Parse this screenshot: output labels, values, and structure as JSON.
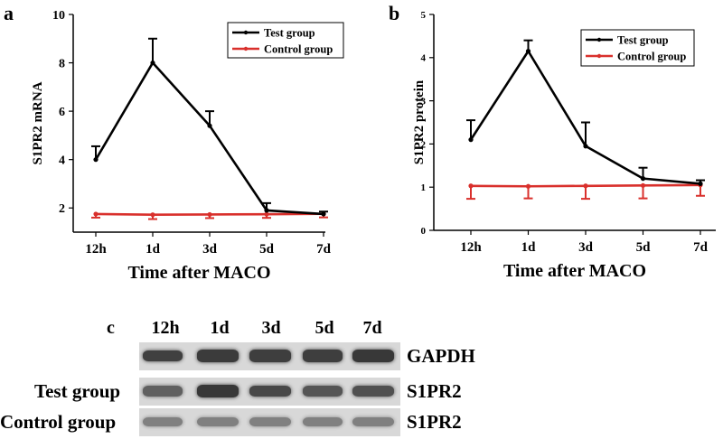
{
  "panels": [
    {
      "letter": "a"
    },
    {
      "letter": "b"
    }
  ],
  "chart_data": [
    {
      "type": "line",
      "categories": [
        "12h",
        "1d",
        "3d",
        "5d",
        "7d"
      ],
      "xlabel": "Time after MACO",
      "ylabel": "S1PR2 mRNA",
      "ylim": [
        1,
        10
      ],
      "yticks": [
        2,
        4,
        6,
        8,
        10
      ],
      "legend_position": "top-right",
      "series": [
        {
          "name": "Test group",
          "color": "#000000",
          "values": [
            4.0,
            8.0,
            5.4,
            1.9,
            1.75
          ],
          "error": [
            0.55,
            1.0,
            0.6,
            0.3,
            0.1
          ]
        },
        {
          "name": "Control group",
          "color": "#d9302c",
          "values": [
            1.75,
            1.72,
            1.73,
            1.74,
            1.76
          ],
          "error": [
            0.15,
            0.18,
            0.15,
            0.15,
            0.15
          ]
        }
      ]
    },
    {
      "type": "line",
      "categories": [
        "12h",
        "1d",
        "3d",
        "5d",
        "7d"
      ],
      "xlabel": "Time after MACO",
      "ylabel": "S1PR2  protein",
      "ylim": [
        0,
        5
      ],
      "yticks": [
        0,
        1,
        2,
        3,
        4,
        5
      ],
      "legend_position": "top-right",
      "series": [
        {
          "name": "Test group",
          "color": "#000000",
          "values": [
            2.1,
            4.15,
            1.95,
            1.2,
            1.08
          ],
          "error": [
            0.45,
            0.25,
            0.55,
            0.25,
            0.08
          ]
        },
        {
          "name": "Control group",
          "color": "#d9302c",
          "values": [
            1.03,
            1.02,
            1.03,
            1.04,
            1.05
          ],
          "error": [
            0.3,
            0.28,
            0.3,
            0.3,
            0.25
          ]
        }
      ]
    }
  ],
  "western_blot": {
    "letter": "c",
    "lanes": [
      "12h",
      "1d",
      "3d",
      "5d",
      "7d"
    ],
    "rows": [
      {
        "left_label": "",
        "right_label": "GAPDH",
        "intensity": [
          0.85,
          0.88,
          0.86,
          0.86,
          0.9
        ]
      },
      {
        "left_label": "Test group",
        "right_label": "S1PR2",
        "intensity": [
          0.65,
          0.9,
          0.8,
          0.72,
          0.75
        ]
      },
      {
        "left_label": "Control group",
        "right_label": "S1PR2",
        "intensity": [
          0.45,
          0.45,
          0.45,
          0.45,
          0.45
        ]
      }
    ]
  }
}
